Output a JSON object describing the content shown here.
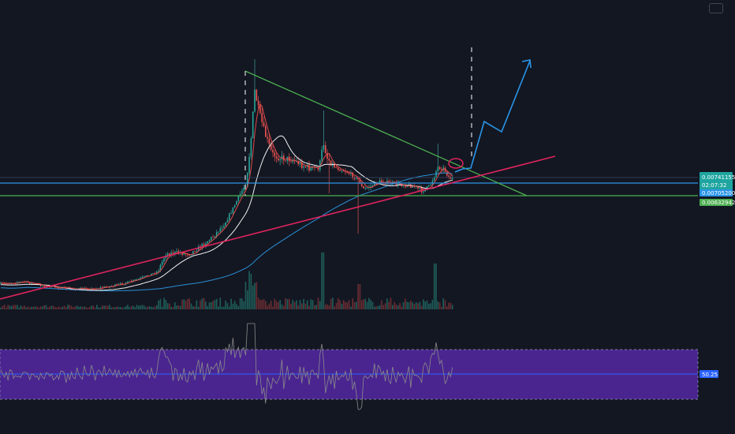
{
  "colors": {
    "background": "#131722",
    "candle_up": "#26a69a",
    "candle_down": "#ef5350",
    "wick_up": "#3b8f86",
    "wick_down": "#c24a4a",
    "ma_fast": "#e14a4a",
    "ma_mid": "#f0f0f0",
    "ma_slow": "#2b8fd6",
    "descending_trendline": "#4caf50",
    "ascending_trendline": "#e0245e",
    "horizontal_blue": "#2a95e8",
    "horizontal_green": "#4caf50",
    "projection_arrow": "#2a95e8",
    "circle_marker": "#e0245e",
    "dashed_markers": "#d9d9d9",
    "rsi_band": "#4a2590",
    "rsi_band_border": "#9c9cb0",
    "rsi_line": "#8a8a8a",
    "rsi_mid_line": "#2a62ff",
    "tag_teal": "#1fa5a0",
    "tag_blue": "#2a95e8",
    "tag_green": "#4caf50"
  },
  "icons": {
    "settings": "rounded-rect-icon"
  },
  "price_tags": {
    "last_price": "0.00741155",
    "countdown": "02:07:32",
    "blue_level": "0.00705200",
    "green_level": "0.00632942"
  },
  "rsi_tags": {
    "value": "50.25"
  },
  "chart_data": {
    "type": "candlestick",
    "description_units": "price in same units as price-scale labels",
    "price_scale_labels": [
      "0.00741155",
      "0.00705200",
      "0.00632942"
    ],
    "horizontal_levels": [
      {
        "price": 0.007052,
        "color": "#2a95e8"
      },
      {
        "price": 0.00632942,
        "color": "#4caf50"
      }
    ],
    "last_price": 0.00741155,
    "indicators": [
      "moving average (red)",
      "moving average (white)",
      "moving average (blue)",
      "volume",
      "RSI"
    ],
    "rsi": {
      "last_value": 50.25,
      "band": [
        30,
        70
      ],
      "mid": 50
    },
    "annotations": [
      "descending trendline",
      "ascending trendline",
      "two vertical dashed markers",
      "circle at breakout",
      "projected zig-zag up arrow"
    ]
  }
}
